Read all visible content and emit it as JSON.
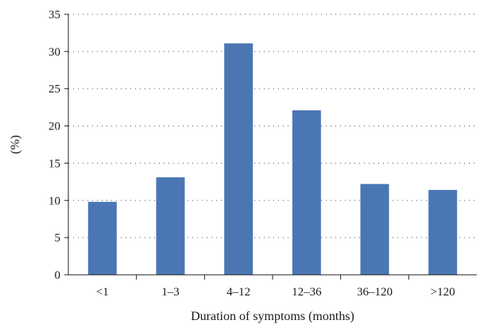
{
  "chart_data": {
    "type": "bar",
    "title": "",
    "xlabel": "Duration of symptoms (months)",
    "ylabel": "(%)",
    "categories": [
      "<1",
      "1–3",
      "4–12",
      "12–36",
      "36–120",
      ">120"
    ],
    "values": [
      9.8,
      13.1,
      31.1,
      22.1,
      12.2,
      11.4
    ],
    "ylim": [
      0,
      35
    ],
    "yticks": [
      0,
      5,
      10,
      15,
      20,
      25,
      30,
      35
    ],
    "grid": true,
    "legend": "none",
    "bar_color": "#4a77b4"
  }
}
